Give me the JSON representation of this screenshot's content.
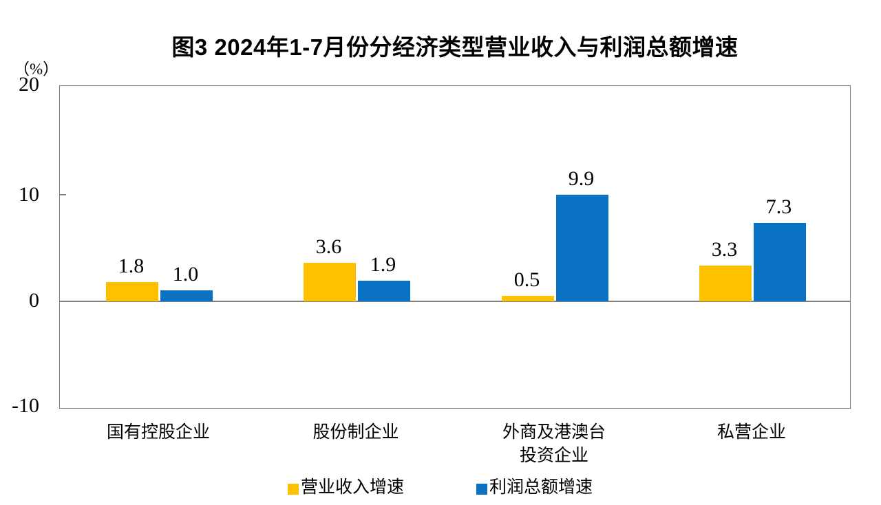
{
  "chart_data": {
    "type": "bar",
    "title": "图3  2024年1-7月份分经济类型营业收入与利润总额增速",
    "unit_label": "（%）",
    "categories": [
      "国有控股企业",
      "股份制企业",
      "外商及港澳台投资企业",
      "私营企业"
    ],
    "category_label_lines": [
      [
        "国有控股企业"
      ],
      [
        "股份制企业"
      ],
      [
        "外商及港澳台",
        "投资企业"
      ],
      [
        "私营企业"
      ]
    ],
    "series": [
      {
        "name": "营业收入增速",
        "color": "#FFC000",
        "values": [
          1.8,
          3.6,
          0.5,
          3.3
        ]
      },
      {
        "name": "利润总额增速",
        "color": "#0A72C3",
        "values": [
          1.0,
          1.9,
          9.9,
          7.3
        ]
      }
    ],
    "data_labels": [
      [
        "1.8",
        "3.6",
        "0.5",
        "3.3"
      ],
      [
        "1.0",
        "1.9",
        "9.9",
        "7.3"
      ]
    ],
    "y_axis": {
      "min": -10,
      "max": 20,
      "tick_labels": [
        "20",
        "10",
        "0",
        "-10"
      ],
      "tick_values": [
        20,
        10,
        0,
        -10
      ],
      "grid": false
    },
    "legend_position": "bottom",
    "axis_color": "#7f7f7f",
    "text_color": "#000000",
    "background_color": "#ffffff"
  }
}
